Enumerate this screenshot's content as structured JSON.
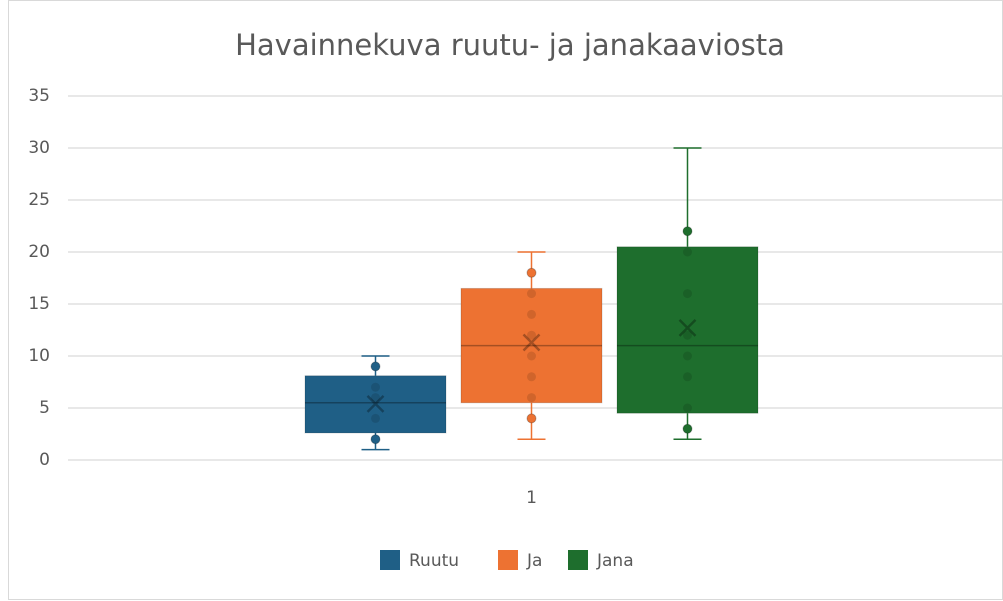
{
  "chart_data": {
    "type": "box",
    "title": "Havainnekuva ruutu- ja janakaaviosta",
    "categories": [
      "1"
    ],
    "ylim": [
      0,
      35
    ],
    "yticks": [
      0,
      5,
      10,
      15,
      20,
      25,
      30,
      35
    ],
    "grid": true,
    "legend": "bottom",
    "series": [
      {
        "name": "Ruutu",
        "color": "#1f5f86",
        "min": 1,
        "q1": 2.6,
        "median": 5.5,
        "q3": 8.1,
        "max": 10,
        "mean": 5.4,
        "points": [
          2,
          4,
          6,
          7,
          9
        ]
      },
      {
        "name": "Ja",
        "color": "#ed7232",
        "min": 2,
        "q1": 5.5,
        "median": 11,
        "q3": 16.5,
        "max": 20,
        "mean": 11.3,
        "points": [
          4,
          6,
          8,
          10,
          12,
          14,
          16,
          18
        ]
      },
      {
        "name": "Jana",
        "color": "#1e6e2d",
        "min": 2,
        "q1": 4.5,
        "median": 11,
        "q3": 20.5,
        "max": 30,
        "mean": 12.7,
        "points": [
          3,
          5,
          8,
          10,
          12,
          16,
          20,
          22
        ]
      }
    ]
  }
}
